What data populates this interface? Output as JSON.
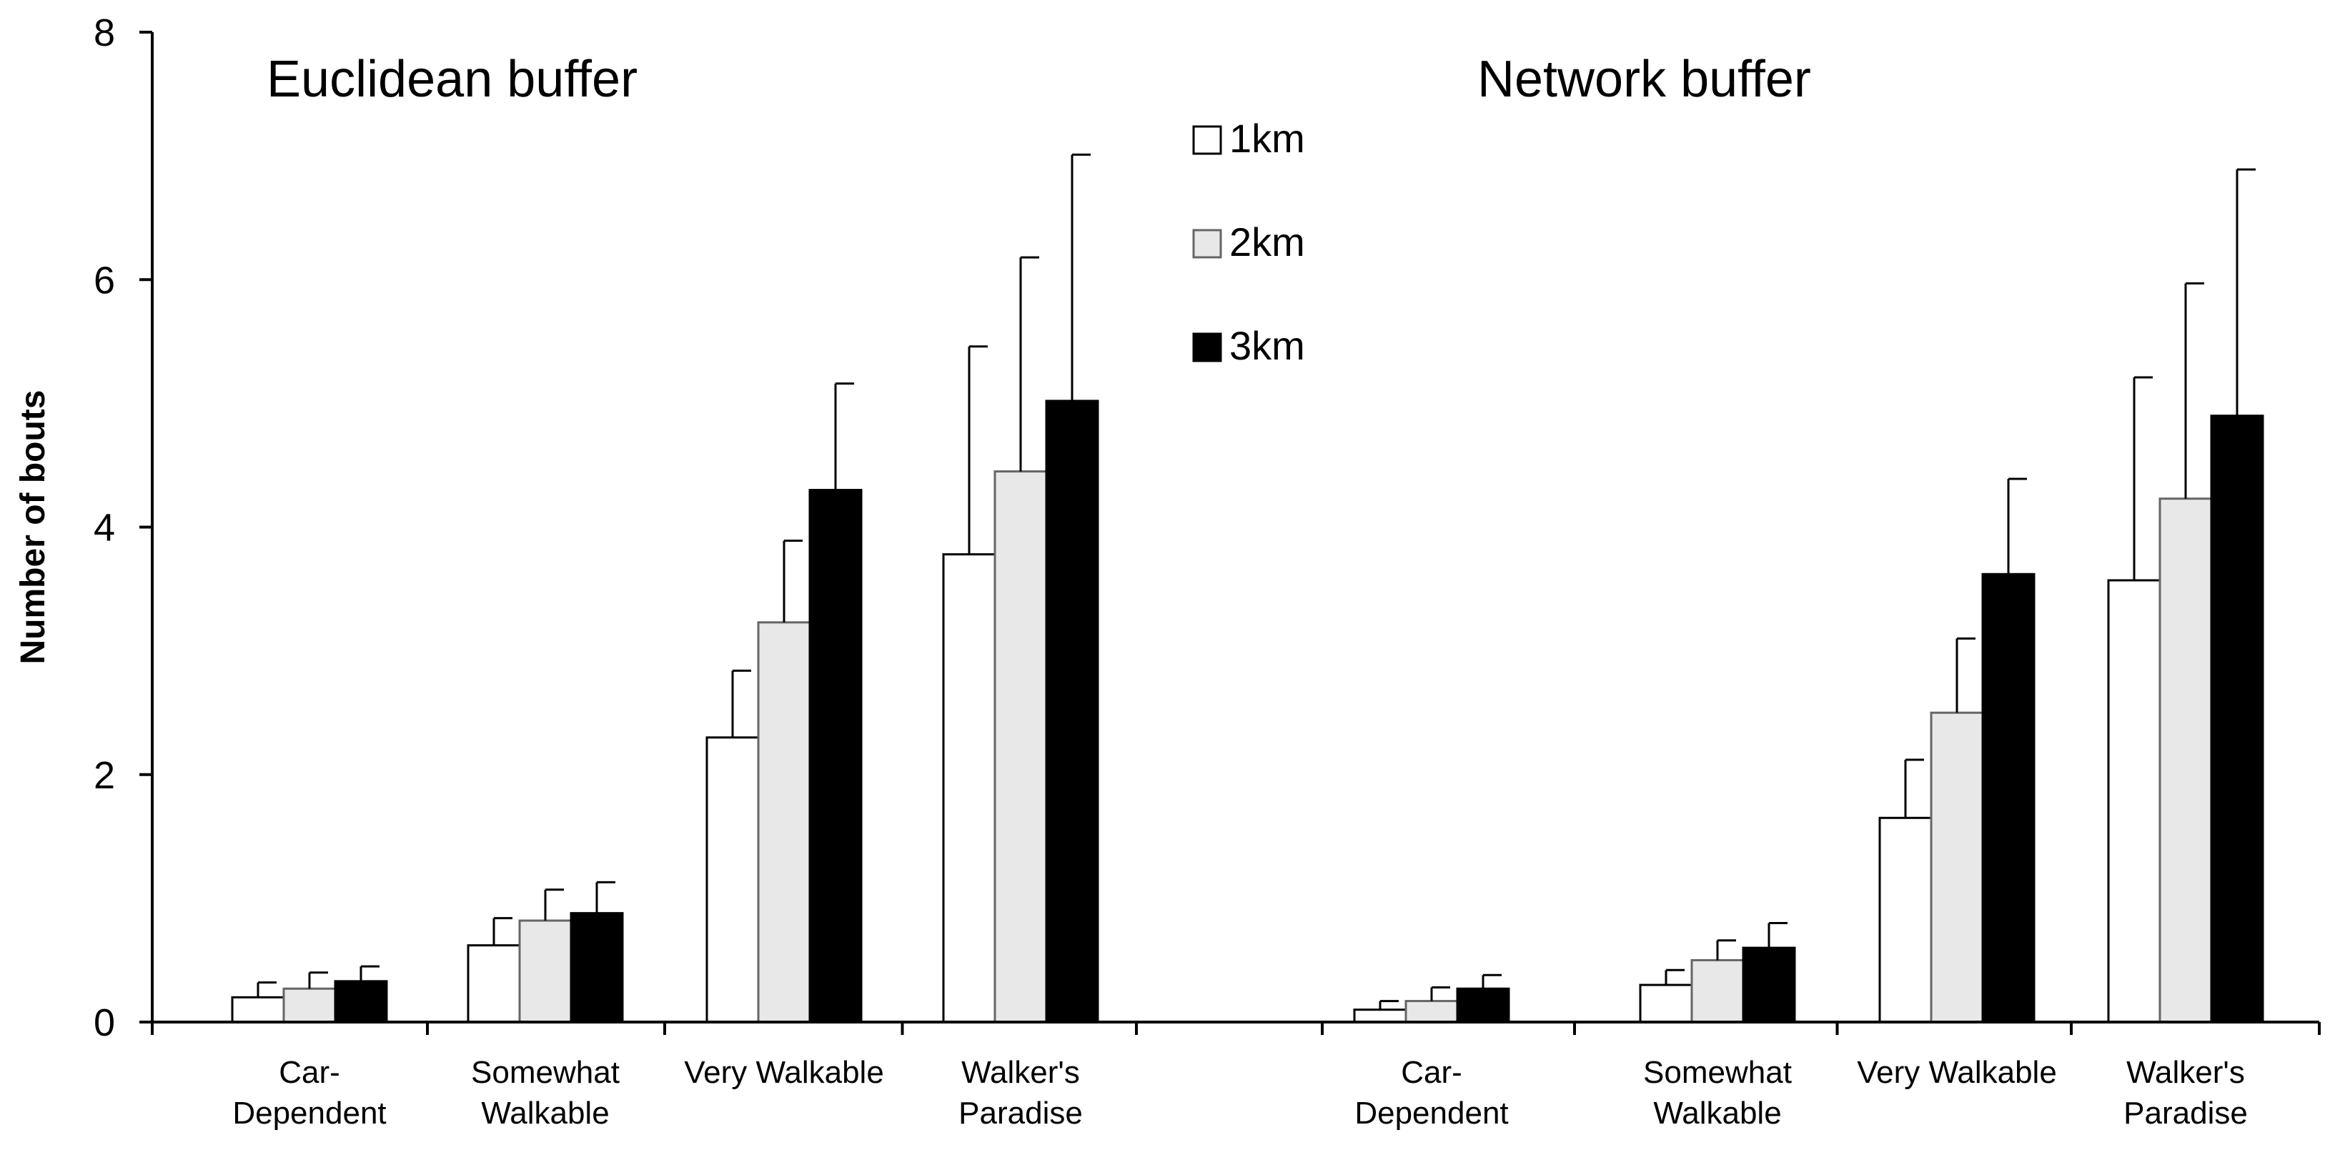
{
  "colors": {
    "1km": "#ffffff",
    "2km": "#e8e8e8",
    "3km": "#000000",
    "bar_stroke": "#000000",
    "axis": "#000000"
  },
  "chart_data": {
    "type": "bar",
    "ylabel": "Number of bouts",
    "ylim": [
      0,
      8
    ],
    "yticks": [
      "0",
      "2",
      "4",
      "6",
      "8"
    ],
    "grid": false,
    "legend_position": "top-center",
    "error_bars": "upper",
    "series": [
      {
        "name": "1km",
        "color_key": "1km"
      },
      {
        "name": "2km",
        "color_key": "2km"
      },
      {
        "name": "3km",
        "color_key": "3km"
      }
    ],
    "panels": [
      {
        "title": "Euclidean buffer",
        "categories": [
          [
            "Car-",
            "Dependent"
          ],
          [
            "Somewhat",
            "Walkable"
          ],
          [
            "Very Walkable"
          ],
          [
            "Walker's",
            "Paradise"
          ]
        ],
        "values": {
          "1km": [
            0.2,
            0.62,
            2.3,
            3.78
          ],
          "2km": [
            0.27,
            0.82,
            3.23,
            4.45
          ],
          "3km": [
            0.33,
            0.88,
            4.3,
            5.02
          ]
        },
        "error_upper": {
          "1km": [
            0.32,
            0.84,
            2.84,
            5.46
          ],
          "2km": [
            0.4,
            1.07,
            3.89,
            6.18
          ],
          "3km": [
            0.45,
            1.13,
            5.16,
            7.01
          ]
        }
      },
      {
        "title": "Network buffer",
        "categories": [
          [
            "Car-",
            "Dependent"
          ],
          [
            "Somewhat",
            "Walkable"
          ],
          [
            "Very Walkable"
          ],
          [
            "Walker's",
            "Paradise"
          ]
        ],
        "values": {
          "1km": [
            0.1,
            0.3,
            1.65,
            3.57
          ],
          "2km": [
            0.17,
            0.5,
            2.5,
            4.23
          ],
          "3km": [
            0.27,
            0.6,
            3.62,
            4.9
          ]
        },
        "error_upper": {
          "1km": [
            0.17,
            0.42,
            2.12,
            5.21
          ],
          "2km": [
            0.28,
            0.66,
            3.1,
            5.97
          ],
          "3km": [
            0.38,
            0.8,
            4.39,
            6.89
          ]
        }
      }
    ]
  }
}
